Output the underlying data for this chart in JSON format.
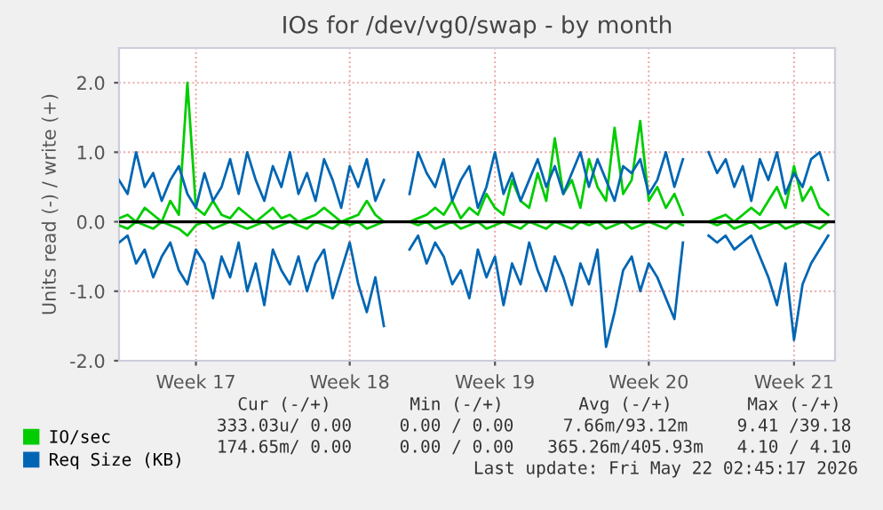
{
  "chart_data": {
    "type": "line",
    "title": "IOs for /dev/vg0/swap - by month",
    "ylabel": "Units read (-) / write (+)",
    "categories": [
      null,
      null,
      null,
      null,
      null,
      null,
      null,
      null,
      null,
      "Week 17",
      null,
      null,
      null,
      null,
      null,
      null,
      null,
      null,
      null,
      null,
      null,
      null,
      null,
      null,
      null,
      null,
      null,
      "Week 18",
      null,
      null,
      null,
      null,
      null,
      null,
      null,
      null,
      null,
      null,
      null,
      null,
      null,
      null,
      null,
      null,
      "Week 19",
      null,
      null,
      null,
      null,
      null,
      null,
      null,
      null,
      null,
      null,
      null,
      null,
      null,
      null,
      null,
      null,
      null,
      "Week 20",
      null,
      null,
      null,
      null,
      null,
      null,
      null,
      null,
      null,
      null,
      null,
      null,
      null,
      null,
      null,
      null,
      "Week 21",
      null,
      null,
      null,
      null
    ],
    "series": [
      {
        "name": "IO/sec",
        "color": "#00cc00",
        "values": [
          0.05,
          0.1,
          0.0,
          0.2,
          0.1,
          0.0,
          0.3,
          0.1,
          2.0,
          0.2,
          0.1,
          0.3,
          0.1,
          0.05,
          0.2,
          0.1,
          0.0,
          0.1,
          0.2,
          0.05,
          0.1,
          0.0,
          0.05,
          0.1,
          0.2,
          0.1,
          0.0,
          0.05,
          0.1,
          0.3,
          0.1,
          0.0,
          null,
          null,
          0.0,
          0.05,
          0.1,
          0.2,
          0.1,
          0.3,
          0.05,
          0.2,
          0.1,
          0.4,
          0.2,
          0.1,
          0.6,
          0.3,
          0.2,
          0.7,
          0.3,
          1.2,
          0.4,
          0.6,
          0.2,
          0.9,
          0.5,
          0.3,
          1.35,
          0.4,
          0.6,
          1.45,
          0.3,
          0.5,
          0.2,
          0.4,
          0.1,
          null,
          null,
          0.0,
          0.05,
          0.1,
          0.0,
          0.1,
          0.2,
          0.1,
          0.3,
          0.5,
          0.2,
          0.8,
          0.3,
          0.5,
          0.2,
          0.1
        ]
      },
      {
        "color": "#00cc00",
        "values": [
          -0.05,
          -0.1,
          0.0,
          -0.05,
          -0.1,
          0.0,
          -0.05,
          -0.1,
          -0.2,
          -0.05,
          0.0,
          -0.1,
          -0.05,
          0.0,
          -0.05,
          -0.1,
          -0.05,
          0.0,
          -0.1,
          -0.05,
          0.0,
          -0.05,
          -0.1,
          0.0,
          -0.05,
          -0.1,
          0.0,
          -0.05,
          0.0,
          -0.1,
          -0.05,
          0.0,
          null,
          null,
          0.0,
          -0.05,
          0.0,
          -0.1,
          -0.05,
          0.0,
          -0.1,
          -0.05,
          0.0,
          -0.1,
          -0.05,
          0.0,
          -0.05,
          -0.1,
          0.0,
          -0.05,
          -0.1,
          0.0,
          -0.05,
          -0.1,
          0.0,
          -0.05,
          0.0,
          -0.1,
          -0.05,
          0.0,
          -0.1,
          -0.05,
          0.0,
          -0.05,
          -0.1,
          0.0,
          -0.05,
          null,
          null,
          0.0,
          -0.05,
          0.0,
          -0.1,
          -0.05,
          0.0,
          -0.1,
          -0.05,
          0.0,
          -0.1,
          -0.05,
          0.0,
          -0.05,
          -0.1,
          0.0
        ]
      },
      {
        "name": "Req Size (KB)",
        "color": "#0066b3",
        "values": [
          0.6,
          0.4,
          1.0,
          0.5,
          0.7,
          0.3,
          0.6,
          0.8,
          0.4,
          0.2,
          0.7,
          0.3,
          0.5,
          0.9,
          0.4,
          1.0,
          0.6,
          0.3,
          0.8,
          0.5,
          1.0,
          0.4,
          0.7,
          0.3,
          0.9,
          0.6,
          0.2,
          0.8,
          0.5,
          0.9,
          0.3,
          0.6,
          null,
          null,
          0.4,
          1.0,
          0.7,
          0.5,
          0.9,
          0.3,
          0.6,
          0.8,
          0.2,
          0.5,
          1.0,
          0.4,
          0.7,
          0.3,
          0.6,
          0.9,
          0.5,
          0.8,
          0.4,
          0.7,
          1.0,
          0.5,
          0.9,
          0.6,
          0.3,
          0.8,
          0.7,
          0.9,
          0.4,
          0.6,
          1.0,
          0.5,
          0.9,
          null,
          null,
          1.0,
          0.7,
          0.9,
          0.5,
          0.8,
          0.3,
          0.9,
          0.6,
          1.0,
          0.4,
          0.7,
          0.5,
          0.9,
          1.0,
          0.6
        ]
      },
      {
        "color": "#0066b3",
        "values": [
          -0.3,
          -0.2,
          -0.6,
          -0.4,
          -0.8,
          -0.5,
          -0.3,
          -0.7,
          -0.9,
          -0.4,
          -0.6,
          -1.1,
          -0.5,
          -0.8,
          -0.3,
          -1.0,
          -0.6,
          -1.2,
          -0.4,
          -0.7,
          -0.9,
          -0.5,
          -1.0,
          -0.6,
          -0.4,
          -1.1,
          -0.7,
          -0.3,
          -0.9,
          -1.3,
          -0.8,
          -1.5,
          null,
          null,
          -0.4,
          -0.2,
          -0.6,
          -0.3,
          -0.5,
          -0.9,
          -0.7,
          -1.1,
          -0.4,
          -0.8,
          -0.5,
          -1.2,
          -0.6,
          -0.9,
          -0.3,
          -0.7,
          -1.0,
          -0.5,
          -0.8,
          -1.2,
          -0.6,
          -0.9,
          -0.4,
          -1.8,
          -1.3,
          -0.7,
          -0.5,
          -1.0,
          -0.6,
          -0.8,
          -1.1,
          -1.4,
          -0.3,
          null,
          null,
          -0.2,
          -0.3,
          -0.2,
          -0.4,
          -0.3,
          -0.2,
          -0.5,
          -0.8,
          -1.2,
          -0.6,
          -1.7,
          -0.9,
          -0.6,
          -0.4,
          -0.2
        ]
      }
    ],
    "ylim": [
      -2.0,
      2.5
    ],
    "yticks": [
      {
        "value": -2,
        "label": "-2.0"
      },
      {
        "value": -1,
        "label": "-1.0"
      },
      {
        "value": 0,
        "label": "0.0"
      },
      {
        "value": 1,
        "label": "1.0"
      },
      {
        "value": 2,
        "label": "2.0"
      }
    ],
    "ref_lines": [
      {
        "axis": "y",
        "value": 0,
        "color": "#000000"
      }
    ],
    "grid": true,
    "legend": "bottom left",
    "annotations": [
      "Cur (-/+)",
      "Min (-/+)",
      "Avg (-/+)",
      "Max (-/+)",
      "333.03u/ 0.00",
      "0.00 / 0.00",
      "7.66m/93.12m",
      "9.41 /39.18",
      "174.65m/ 0.00",
      "0.00 / 0.00",
      "365.26m/405.93m",
      "4.10 / 4.10",
      "Last update: Fri May 22 02:45:17 2026"
    ]
  }
}
